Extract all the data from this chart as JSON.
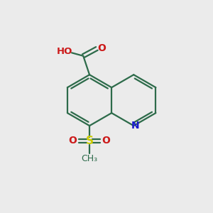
{
  "background_color": "#ebebeb",
  "bond_color": "#2d6b4a",
  "n_color": "#1a1acc",
  "o_color": "#cc1a1a",
  "s_color": "#cccc00",
  "figsize": [
    3.0,
    3.0
  ],
  "dpi": 100,
  "xlim": [
    0,
    10
  ],
  "ylim": [
    0,
    10
  ]
}
